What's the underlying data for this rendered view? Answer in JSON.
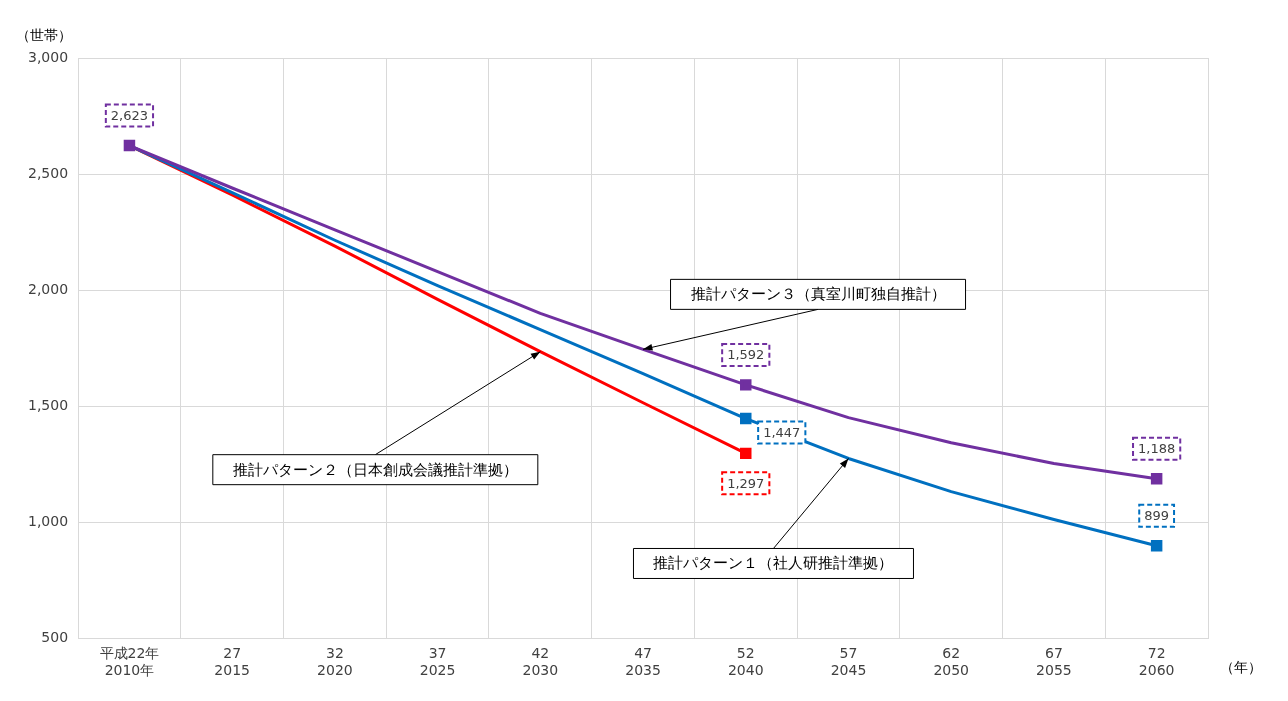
{
  "chart_data": {
    "type": "line",
    "ylabel": "（世帯）",
    "xlabel": "（年）",
    "categories": [
      "平成22年\n2010年",
      "27\n2015",
      "32\n2020",
      "37\n2025",
      "42\n2030",
      "47\n2035",
      "52\n2040",
      "57\n2045",
      "62\n2050",
      "67\n2055",
      "72\n2060"
    ],
    "series": [
      {
        "name": "推計パターン３（真室川町独自推計）",
        "color": "#7030a0",
        "values": [
          2623,
          2440,
          2260,
          2080,
          1900,
          1745,
          1592,
          1451,
          1343,
          1253,
          1188
        ],
        "value_labels": [
          "2,623",
          null,
          null,
          null,
          null,
          null,
          "1,592",
          null,
          null,
          null,
          "1,188"
        ]
      },
      {
        "name": "推計パターン１（社人研推計準拠）",
        "color": "#0070c0",
        "values": [
          2623,
          2420,
          2215,
          2020,
          1830,
          1640,
          1447,
          1275,
          1132,
          1012,
          899
        ],
        "value_labels": [
          null,
          null,
          null,
          null,
          null,
          null,
          "1,447",
          null,
          null,
          null,
          "899"
        ]
      },
      {
        "name": "推計パターン２（日本創成会議推計準拠）",
        "color": "#ff0000",
        "values": [
          2623,
          2410,
          2190,
          1960,
          1735,
          1515,
          1297,
          null,
          null,
          null,
          null
        ],
        "value_labels": [
          null,
          null,
          null,
          null,
          null,
          null,
          "1,297",
          null,
          null,
          null,
          null
        ]
      }
    ],
    "ylim": [
      500,
      3000
    ],
    "yticks": [
      500,
      {
        "value": 1000,
        "label": "1,000"
      },
      {
        "value": 1500,
        "label": "1,500"
      },
      {
        "value": 2000,
        "label": "2,000"
      },
      {
        "value": 2500,
        "label": "2,500"
      },
      {
        "value": 3000,
        "label": "3,000"
      }
    ],
    "grid": true,
    "legend": false,
    "line_style": "solid"
  }
}
